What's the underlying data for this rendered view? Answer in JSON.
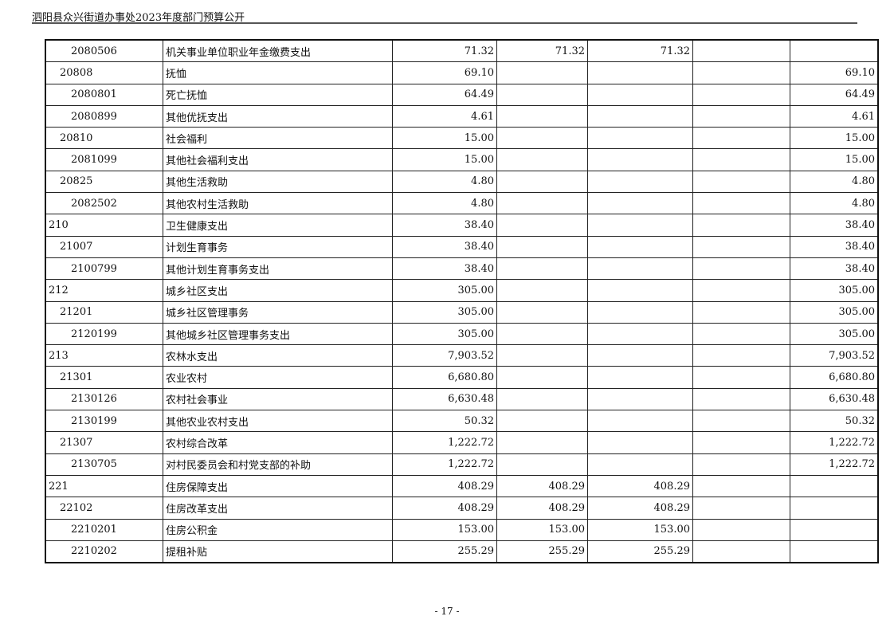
{
  "header": {
    "title": "泗阳县众兴街道办事处2023年度部门预算公开"
  },
  "table": {
    "rows": [
      {
        "code": "2080506",
        "level": 3,
        "name": "机关事业单位职业年金缴费支出",
        "c2": "71.32",
        "c3": "71.32",
        "c4": "71.32",
        "c5": "",
        "c6": ""
      },
      {
        "code": "20808",
        "level": 2,
        "name": "抚恤",
        "c2": "69.10",
        "c3": "",
        "c4": "",
        "c5": "",
        "c6": "69.10"
      },
      {
        "code": "2080801",
        "level": 3,
        "name": "死亡抚恤",
        "c2": "64.49",
        "c3": "",
        "c4": "",
        "c5": "",
        "c6": "64.49"
      },
      {
        "code": "2080899",
        "level": 3,
        "name": "其他优抚支出",
        "c2": "4.61",
        "c3": "",
        "c4": "",
        "c5": "",
        "c6": "4.61"
      },
      {
        "code": "20810",
        "level": 2,
        "name": "社会福利",
        "c2": "15.00",
        "c3": "",
        "c4": "",
        "c5": "",
        "c6": "15.00"
      },
      {
        "code": "2081099",
        "level": 3,
        "name": "其他社会福利支出",
        "c2": "15.00",
        "c3": "",
        "c4": "",
        "c5": "",
        "c6": "15.00"
      },
      {
        "code": "20825",
        "level": 2,
        "name": "其他生活救助",
        "c2": "4.80",
        "c3": "",
        "c4": "",
        "c5": "",
        "c6": "4.80"
      },
      {
        "code": "2082502",
        "level": 3,
        "name": "其他农村生活救助",
        "c2": "4.80",
        "c3": "",
        "c4": "",
        "c5": "",
        "c6": "4.80"
      },
      {
        "code": "210",
        "level": 1,
        "name": "卫生健康支出",
        "c2": "38.40",
        "c3": "",
        "c4": "",
        "c5": "",
        "c6": "38.40"
      },
      {
        "code": "21007",
        "level": 2,
        "name": "计划生育事务",
        "c2": "38.40",
        "c3": "",
        "c4": "",
        "c5": "",
        "c6": "38.40"
      },
      {
        "code": "2100799",
        "level": 3,
        "name": "其他计划生育事务支出",
        "c2": "38.40",
        "c3": "",
        "c4": "",
        "c5": "",
        "c6": "38.40"
      },
      {
        "code": "212",
        "level": 1,
        "name": "城乡社区支出",
        "c2": "305.00",
        "c3": "",
        "c4": "",
        "c5": "",
        "c6": "305.00"
      },
      {
        "code": "21201",
        "level": 2,
        "name": "城乡社区管理事务",
        "c2": "305.00",
        "c3": "",
        "c4": "",
        "c5": "",
        "c6": "305.00"
      },
      {
        "code": "2120199",
        "level": 3,
        "name": "其他城乡社区管理事务支出",
        "c2": "305.00",
        "c3": "",
        "c4": "",
        "c5": "",
        "c6": "305.00"
      },
      {
        "code": "213",
        "level": 1,
        "name": "农林水支出",
        "c2": "7,903.52",
        "c3": "",
        "c4": "",
        "c5": "",
        "c6": "7,903.52"
      },
      {
        "code": "21301",
        "level": 2,
        "name": "农业农村",
        "c2": "6,680.80",
        "c3": "",
        "c4": "",
        "c5": "",
        "c6": "6,680.80"
      },
      {
        "code": "2130126",
        "level": 3,
        "name": "农村社会事业",
        "c2": "6,630.48",
        "c3": "",
        "c4": "",
        "c5": "",
        "c6": "6,630.48"
      },
      {
        "code": "2130199",
        "level": 3,
        "name": "其他农业农村支出",
        "c2": "50.32",
        "c3": "",
        "c4": "",
        "c5": "",
        "c6": "50.32"
      },
      {
        "code": "21307",
        "level": 2,
        "name": "农村综合改革",
        "c2": "1,222.72",
        "c3": "",
        "c4": "",
        "c5": "",
        "c6": "1,222.72"
      },
      {
        "code": "2130705",
        "level": 3,
        "name": "对村民委员会和村党支部的补助",
        "c2": "1,222.72",
        "c3": "",
        "c4": "",
        "c5": "",
        "c6": "1,222.72"
      },
      {
        "code": "221",
        "level": 1,
        "name": "住房保障支出",
        "c2": "408.29",
        "c3": "408.29",
        "c4": "408.29",
        "c5": "",
        "c6": ""
      },
      {
        "code": "22102",
        "level": 2,
        "name": "住房改革支出",
        "c2": "408.29",
        "c3": "408.29",
        "c4": "408.29",
        "c5": "",
        "c6": ""
      },
      {
        "code": "2210201",
        "level": 3,
        "name": "住房公积金",
        "c2": "153.00",
        "c3": "153.00",
        "c4": "153.00",
        "c5": "",
        "c6": ""
      },
      {
        "code": "2210202",
        "level": 3,
        "name": "提租补贴",
        "c2": "255.29",
        "c3": "255.29",
        "c4": "255.29",
        "c5": "",
        "c6": ""
      }
    ]
  },
  "footer": {
    "page_number": "- 17 -"
  }
}
